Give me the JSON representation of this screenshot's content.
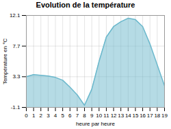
{
  "chart_data": {
    "type": "area",
    "title": "Evolution de la température",
    "xlabel": "heure par heure",
    "ylabel": "Température en °C",
    "x": [
      0,
      1,
      2,
      3,
      4,
      5,
      6,
      7,
      8,
      9,
      10,
      11,
      12,
      13,
      14,
      15,
      16,
      17,
      18,
      19
    ],
    "values": [
      3.3,
      3.6,
      3.5,
      3.4,
      3.2,
      2.8,
      1.8,
      0.7,
      -0.8,
      1.5,
      5.5,
      9.0,
      10.5,
      11.2,
      11.7,
      11.5,
      10.5,
      8.0,
      5.0,
      2.0
    ],
    "color": "#6bb8cc",
    "xlim": [
      0,
      19
    ],
    "xticks": [
      0,
      1,
      2,
      3,
      4,
      5,
      6,
      7,
      8,
      9,
      10,
      11,
      12,
      13,
      14,
      15,
      16,
      17,
      18,
      19
    ],
    "ylim": [
      -1.1,
      12.1
    ],
    "yticks": [
      -1.1,
      3.3,
      7.7,
      12.1
    ],
    "grid": true
  }
}
